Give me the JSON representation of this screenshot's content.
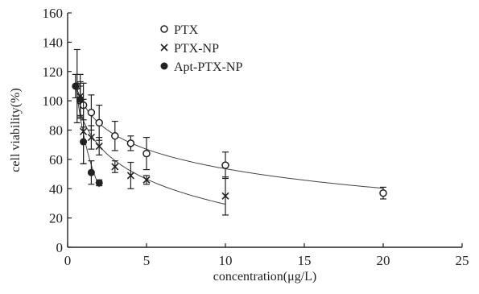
{
  "chart_data": {
    "type": "scatter",
    "title": "",
    "xlabel": "concentration(μg/L)",
    "ylabel": "cell viability(%)",
    "xlim": [
      0,
      25
    ],
    "ylim": [
      0,
      160
    ],
    "x_ticks": [
      0,
      5,
      10,
      15,
      20,
      25
    ],
    "y_ticks": [
      0,
      20,
      40,
      60,
      80,
      100,
      120,
      140,
      160
    ],
    "grid": false,
    "legend_position": "top-center",
    "series": [
      {
        "name": "PTX",
        "marker": "open-circle",
        "x": [
          0.6,
          0.8,
          1.0,
          1.5,
          2.0,
          3.0,
          4.0,
          5.0,
          10.0,
          20.0
        ],
        "y": [
          110,
          100,
          97,
          92,
          85,
          76,
          71,
          64,
          56,
          37
        ],
        "err": [
          25,
          10,
          15,
          12,
          12,
          10,
          5,
          11,
          9,
          4
        ],
        "fit": true
      },
      {
        "name": "PTX-NP",
        "marker": "cross",
        "x": [
          0.8,
          1.0,
          1.5,
          2.0,
          3.0,
          4.0,
          5.0,
          10.0
        ],
        "y": [
          103,
          79,
          75,
          69,
          55,
          49,
          46,
          35
        ],
        "err": [
          15,
          22,
          8,
          6,
          4,
          9,
          3,
          13
        ],
        "fit": true
      },
      {
        "name": "Apt-PTX-NP",
        "marker": "filled-circle",
        "x": [
          0.5,
          0.8,
          1.0,
          1.5,
          2.0
        ],
        "y": [
          110,
          101,
          72,
          51,
          44
        ],
        "err": [
          8,
          12,
          15,
          8,
          2
        ],
        "fit": true
      }
    ]
  }
}
